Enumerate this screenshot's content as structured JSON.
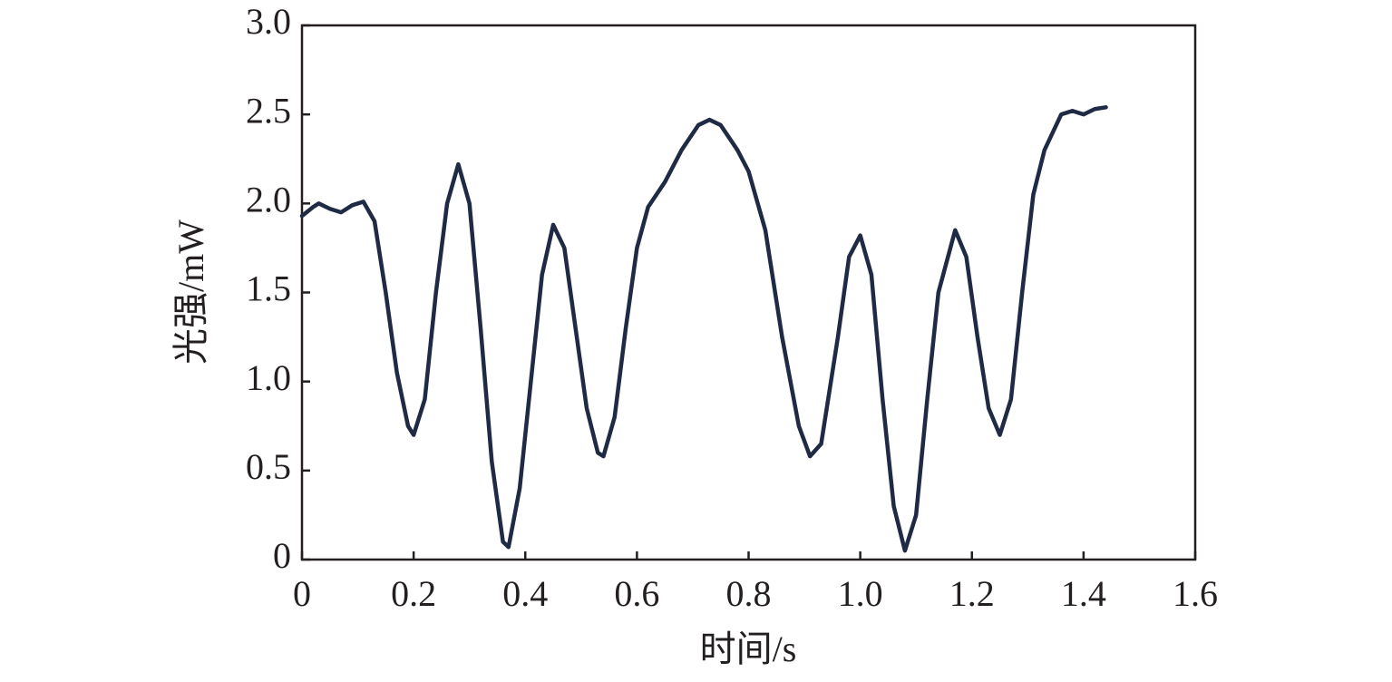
{
  "chart_data": {
    "type": "line",
    "xlabel": "时间/s",
    "ylabel": "光强/mW",
    "xlim": [
      0,
      1.6
    ],
    "ylim": [
      0,
      3
    ],
    "xticks": [
      0,
      0.2,
      0.4,
      0.6,
      0.8,
      {
        "value": 1,
        "label": "1.0"
      },
      1.2,
      1.4,
      1.6
    ],
    "yticks": [
      0,
      0.5,
      {
        "value": 1,
        "label": "1.0"
      },
      1.5,
      {
        "value": 2,
        "label": "2.0"
      },
      2.5,
      {
        "value": 3,
        "label": "3.0"
      }
    ],
    "series": [
      {
        "color": "#1f2a44",
        "x": [
          0,
          0.02,
          0.03,
          0.05,
          0.07,
          0.09,
          0.11,
          0.13,
          0.15,
          0.17,
          0.19,
          0.2,
          0.22,
          0.24,
          0.26,
          0.28,
          0.3,
          0.32,
          0.34,
          0.36,
          0.37,
          0.39,
          0.41,
          0.43,
          0.45,
          0.47,
          0.49,
          0.51,
          0.53,
          0.54,
          0.56,
          0.58,
          0.6,
          0.62,
          0.65,
          0.68,
          0.71,
          0.73,
          0.75,
          0.78,
          0.8,
          0.83,
          0.86,
          0.89,
          0.91,
          0.93,
          0.96,
          0.98,
          1.0,
          1.02,
          1.04,
          1.06,
          1.08,
          1.1,
          1.12,
          1.14,
          1.17,
          1.19,
          1.21,
          1.23,
          1.25,
          1.27,
          1.29,
          1.31,
          1.33,
          1.36,
          1.38,
          1.4,
          1.42,
          1.44
        ],
        "values": [
          1.93,
          1.98,
          2.0,
          1.97,
          1.95,
          1.99,
          2.01,
          1.9,
          1.5,
          1.05,
          0.75,
          0.7,
          0.9,
          1.5,
          2.0,
          2.22,
          2.0,
          1.3,
          0.55,
          0.1,
          0.07,
          0.4,
          1.0,
          1.6,
          1.88,
          1.75,
          1.3,
          0.85,
          0.6,
          0.58,
          0.8,
          1.3,
          1.75,
          1.98,
          2.12,
          2.3,
          2.44,
          2.47,
          2.44,
          2.3,
          2.18,
          1.85,
          1.25,
          0.75,
          0.58,
          0.65,
          1.25,
          1.7,
          1.82,
          1.6,
          0.9,
          0.3,
          0.05,
          0.25,
          0.9,
          1.5,
          1.85,
          1.7,
          1.25,
          0.85,
          0.7,
          0.9,
          1.5,
          2.05,
          2.3,
          2.5,
          2.52,
          2.5,
          2.53,
          2.54
        ]
      }
    ]
  }
}
